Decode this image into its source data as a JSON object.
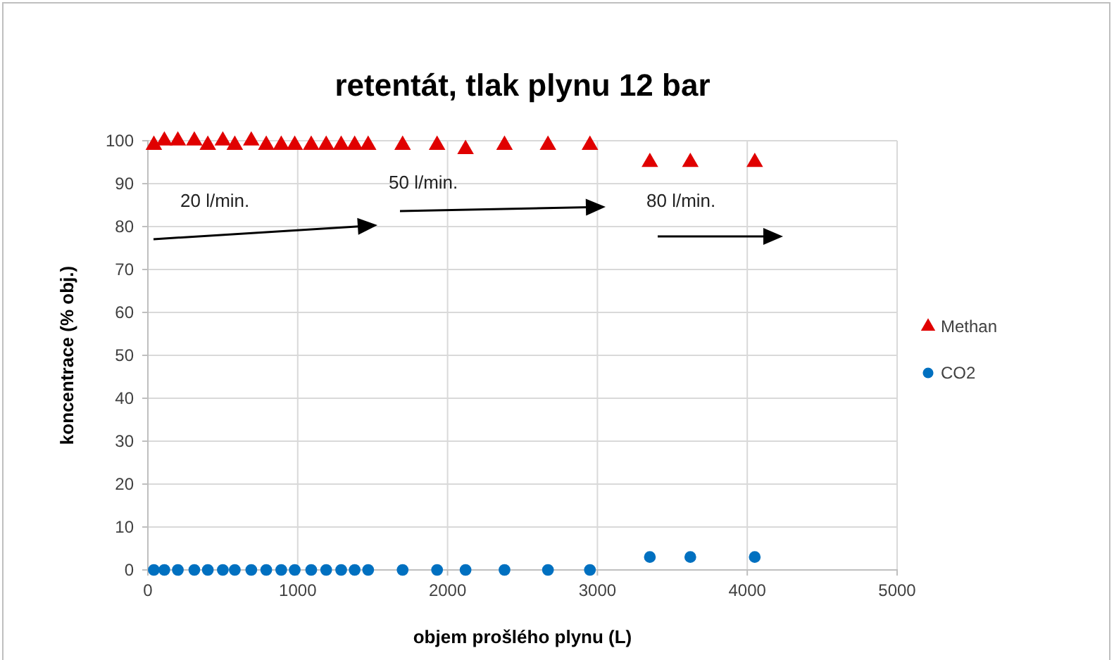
{
  "chart_data": {
    "type": "scatter",
    "title": "retentát, tlak plynu 12 bar",
    "xlabel": "objem prošlého plynu  (L)",
    "ylabel": "koncentrace (% obj.)",
    "xlim": [
      0,
      5000
    ],
    "xticks": [
      0,
      1000,
      2000,
      3000,
      4000,
      5000
    ],
    "ylim": [
      0,
      100
    ],
    "yticks": [
      0,
      10,
      20,
      30,
      40,
      50,
      60,
      70,
      80,
      90,
      100
    ],
    "grid": true,
    "legend": "right",
    "annotations": [
      "20 l/min.",
      "50 l/min.",
      "80 l/min."
    ],
    "x": [
      40,
      110,
      200,
      310,
      400,
      500,
      580,
      690,
      790,
      890,
      980,
      1090,
      1190,
      1290,
      1380,
      1470,
      1700,
      1930,
      2120,
      2380,
      2670,
      2950,
      3350,
      3620,
      4050
    ],
    "series": [
      {
        "name": "Methan",
        "color": "#e00000",
        "marker": "triangle",
        "values": [
          99,
          100,
          100,
          100,
          99,
          100,
          99,
          100,
          99,
          99,
          99,
          99,
          99,
          99,
          99,
          99,
          99,
          99,
          98,
          99,
          99,
          99,
          95,
          95,
          95
        ]
      },
      {
        "name": "CO2",
        "color": "#0070c0",
        "marker": "circle",
        "values": [
          0,
          0,
          0,
          0,
          0,
          0,
          0,
          0,
          0,
          0,
          0,
          0,
          0,
          0,
          0,
          0,
          0,
          0,
          0,
          0,
          0,
          0,
          3,
          3,
          3
        ]
      }
    ]
  }
}
